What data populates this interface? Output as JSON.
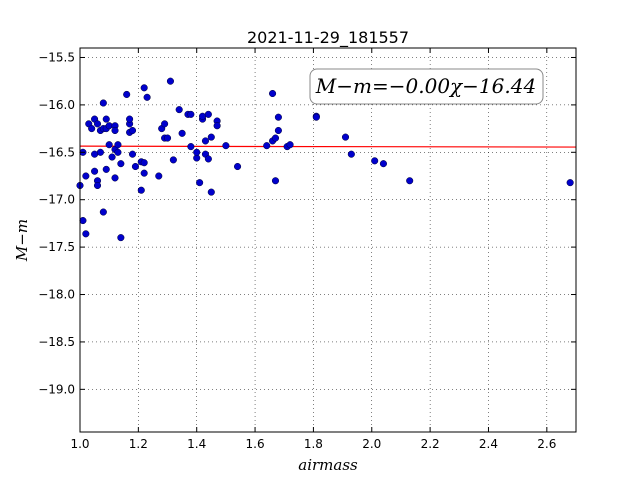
{
  "chart_data": {
    "type": "scatter",
    "title": "2021-11-29_181557",
    "xlabel": "airmass",
    "ylabel": "M−m",
    "xlim": [
      1.0,
      2.7
    ],
    "ylim": [
      -19.45,
      -15.4
    ],
    "x_ticks": [
      1.0,
      1.2,
      1.4,
      1.6,
      1.8,
      2.0,
      2.2,
      2.4,
      2.6
    ],
    "x_tick_labels": [
      "1.0",
      "1.2",
      "1.4",
      "1.6",
      "1.8",
      "2.0",
      "2.2",
      "2.4",
      "2.6"
    ],
    "y_ticks": [
      -15.5,
      -16.0,
      -16.5,
      -17.0,
      -17.5,
      -18.0,
      -18.5,
      -19.0
    ],
    "y_tick_labels": [
      "−15.5",
      "−16.0",
      "−16.5",
      "−17.0",
      "−17.5",
      "−18.0",
      "−18.5",
      "−19.0"
    ],
    "grid": true,
    "annotation": "M−m=−0.00χ−16.44",
    "annotation_position": "top-right",
    "point_color": "#0000cc",
    "fit_color": "#ff0000",
    "fit_line": {
      "slope": 0.0,
      "intercept": -16.44,
      "x": [
        1.0,
        2.7
      ],
      "y": [
        -16.435,
        -16.445
      ]
    },
    "points": [
      [
        1.0,
        -16.85
      ],
      [
        1.01,
        -17.22
      ],
      [
        1.01,
        -16.5
      ],
      [
        1.02,
        -17.36
      ],
      [
        1.02,
        -16.75
      ],
      [
        1.03,
        -16.2
      ],
      [
        1.04,
        -16.25
      ],
      [
        1.05,
        -16.15
      ],
      [
        1.05,
        -16.52
      ],
      [
        1.05,
        -16.7
      ],
      [
        1.06,
        -16.2
      ],
      [
        1.06,
        -16.8
      ],
      [
        1.06,
        -16.85
      ],
      [
        1.07,
        -16.5
      ],
      [
        1.07,
        -16.27
      ],
      [
        1.08,
        -16.25
      ],
      [
        1.08,
        -17.13
      ],
      [
        1.08,
        -15.98
      ],
      [
        1.09,
        -16.15
      ],
      [
        1.09,
        -16.25
      ],
      [
        1.09,
        -16.68
      ],
      [
        1.1,
        -16.22
      ],
      [
        1.1,
        -16.42
      ],
      [
        1.11,
        -16.55
      ],
      [
        1.12,
        -16.47
      ],
      [
        1.12,
        -16.22
      ],
      [
        1.12,
        -16.27
      ],
      [
        1.12,
        -16.77
      ],
      [
        1.13,
        -16.42
      ],
      [
        1.13,
        -16.5
      ],
      [
        1.14,
        -16.62
      ],
      [
        1.14,
        -17.4
      ],
      [
        1.16,
        -15.89
      ],
      [
        1.17,
        -16.29
      ],
      [
        1.17,
        -16.2
      ],
      [
        1.17,
        -16.15
      ],
      [
        1.18,
        -16.27
      ],
      [
        1.18,
        -16.52
      ],
      [
        1.19,
        -16.65
      ],
      [
        1.21,
        -16.9
      ],
      [
        1.21,
        -16.6
      ],
      [
        1.22,
        -16.72
      ],
      [
        1.22,
        -16.61
      ],
      [
        1.22,
        -15.82
      ],
      [
        1.23,
        -15.92
      ],
      [
        1.27,
        -16.75
      ],
      [
        1.28,
        -16.25
      ],
      [
        1.29,
        -16.2
      ],
      [
        1.29,
        -16.35
      ],
      [
        1.3,
        -16.35
      ],
      [
        1.31,
        -15.75
      ],
      [
        1.32,
        -16.58
      ],
      [
        1.34,
        -16.05
      ],
      [
        1.35,
        -16.3
      ],
      [
        1.37,
        -16.1
      ],
      [
        1.38,
        -16.44
      ],
      [
        1.38,
        -16.1
      ],
      [
        1.4,
        -16.56
      ],
      [
        1.4,
        -16.5
      ],
      [
        1.41,
        -16.82
      ],
      [
        1.42,
        -16.15
      ],
      [
        1.42,
        -16.12
      ],
      [
        1.43,
        -16.52
      ],
      [
        1.43,
        -16.38
      ],
      [
        1.44,
        -16.57
      ],
      [
        1.44,
        -16.1
      ],
      [
        1.45,
        -16.92
      ],
      [
        1.45,
        -16.34
      ],
      [
        1.47,
        -16.17
      ],
      [
        1.47,
        -16.22
      ],
      [
        1.5,
        -16.43
      ],
      [
        1.54,
        -16.65
      ],
      [
        1.64,
        -16.43
      ],
      [
        1.66,
        -15.88
      ],
      [
        1.66,
        -16.38
      ],
      [
        1.67,
        -16.35
      ],
      [
        1.67,
        -16.8
      ],
      [
        1.68,
        -16.27
      ],
      [
        1.68,
        -16.13
      ],
      [
        1.71,
        -16.44
      ],
      [
        1.72,
        -16.42
      ],
      [
        1.81,
        -16.12
      ],
      [
        1.81,
        -16.13
      ],
      [
        1.91,
        -16.34
      ],
      [
        1.93,
        -16.52
      ],
      [
        2.01,
        -16.59
      ],
      [
        2.04,
        -16.62
      ],
      [
        2.13,
        -16.8
      ],
      [
        2.68,
        -16.82
      ]
    ]
  }
}
